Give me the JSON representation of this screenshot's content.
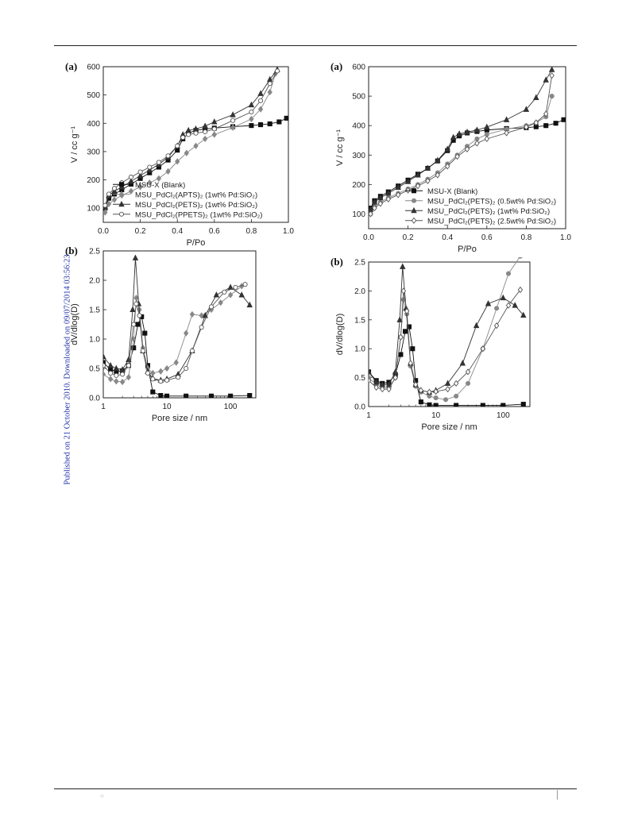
{
  "page": {
    "side_note": "Published on 21 October 2010. Downloaded on 09/07/2014 03:56:23."
  },
  "chart_data": [
    {
      "id": "left-a",
      "panel_label": "(a)",
      "type": "line",
      "xlabel": "P/Po",
      "ylabel": "V / cc g⁻¹",
      "xlim": [
        0,
        1.0
      ],
      "ylim": [
        50,
        600
      ],
      "x_scale": "linear",
      "xticks": [
        0.0,
        0.2,
        0.4,
        0.6,
        0.8,
        1.0
      ],
      "xtick_labels": [
        "0.0",
        "0.2",
        "0.4",
        "0.6",
        "0.8",
        "1.0"
      ],
      "yticks": [
        100,
        200,
        300,
        400,
        500,
        600
      ],
      "ytick_labels": [
        "100",
        "200",
        "300",
        "400",
        "500",
        "600"
      ],
      "legend_position": "bottom-left",
      "series": [
        {
          "name": "MSU-X (Blank)",
          "marker": "square-filled",
          "color": "#111111",
          "x": [
            0.01,
            0.03,
            0.06,
            0.1,
            0.15,
            0.2,
            0.25,
            0.3,
            0.35,
            0.4,
            0.43,
            0.46,
            0.5,
            0.55,
            0.6,
            0.7,
            0.8,
            0.85,
            0.9,
            0.95,
            0.99
          ],
          "y": [
            100,
            135,
            150,
            165,
            185,
            205,
            225,
            245,
            270,
            305,
            345,
            365,
            375,
            380,
            383,
            388,
            392,
            395,
            398,
            405,
            418
          ]
        },
        {
          "name": "MSU_PdCl₂(APTS)₂  (1wt% Pd:SiO₂)",
          "marker": "diamond-filled",
          "color": "#888888",
          "x": [
            0.01,
            0.03,
            0.06,
            0.1,
            0.15,
            0.2,
            0.25,
            0.3,
            0.35,
            0.4,
            0.45,
            0.5,
            0.55,
            0.6,
            0.7,
            0.8,
            0.85,
            0.9,
            0.93
          ],
          "y": [
            85,
            115,
            130,
            145,
            160,
            175,
            190,
            205,
            230,
            265,
            295,
            320,
            345,
            360,
            385,
            415,
            450,
            510,
            575
          ]
        },
        {
          "name": "MSU_PdCl₂(PETS)₂  (1wt% Pd:SiO₂)",
          "marker": "triangle-filled",
          "color": "#333333",
          "x": [
            0.01,
            0.03,
            0.06,
            0.1,
            0.15,
            0.2,
            0.25,
            0.3,
            0.35,
            0.4,
            0.43,
            0.46,
            0.5,
            0.55,
            0.6,
            0.7,
            0.8,
            0.85,
            0.9,
            0.94
          ],
          "y": [
            105,
            145,
            160,
            175,
            195,
            215,
            235,
            255,
            280,
            320,
            360,
            375,
            380,
            390,
            405,
            430,
            465,
            505,
            555,
            590
          ]
        },
        {
          "name": "MSU_PdCl₂(PPETS)₂  (1wt% Pd:SiO₂)",
          "marker": "circle-open",
          "color": "#555555",
          "x": [
            0.01,
            0.03,
            0.06,
            0.1,
            0.15,
            0.2,
            0.25,
            0.3,
            0.35,
            0.4,
            0.43,
            0.46,
            0.5,
            0.55,
            0.6,
            0.7,
            0.8,
            0.85,
            0.9,
            0.94
          ],
          "y": [
            110,
            150,
            170,
            190,
            210,
            228,
            245,
            262,
            285,
            320,
            350,
            360,
            365,
            370,
            380,
            410,
            440,
            480,
            540,
            585
          ]
        }
      ]
    },
    {
      "id": "right-a",
      "panel_label": "(a)",
      "type": "line",
      "xlabel": "P/Po",
      "ylabel": "V / cc g⁻¹",
      "xlim": [
        0,
        1.0
      ],
      "ylim": [
        50,
        600
      ],
      "x_scale": "linear",
      "xticks": [
        0.0,
        0.2,
        0.4,
        0.6,
        0.8,
        1.0
      ],
      "xtick_labels": [
        "0.0",
        "0.2",
        "0.4",
        "0.6",
        "0.8",
        "1.0"
      ],
      "yticks": [
        100,
        200,
        300,
        400,
        500,
        600
      ],
      "ytick_labels": [
        "100",
        "200",
        "300",
        "400",
        "500",
        "600"
      ],
      "legend_position": "bottom-right",
      "series": [
        {
          "name": "MSU-X (Blank)",
          "marker": "square-filled",
          "color": "#111111",
          "x": [
            0.01,
            0.03,
            0.06,
            0.1,
            0.15,
            0.2,
            0.25,
            0.3,
            0.35,
            0.4,
            0.43,
            0.46,
            0.5,
            0.55,
            0.6,
            0.7,
            0.8,
            0.85,
            0.9,
            0.95,
            0.99
          ],
          "y": [
            120,
            145,
            160,
            175,
            195,
            215,
            235,
            255,
            280,
            315,
            350,
            365,
            375,
            380,
            385,
            390,
            393,
            396,
            400,
            408,
            420
          ]
        },
        {
          "name": "MSU_PdCl₂(PETS)₂  (0.5wt% Pd:SiO₂)",
          "marker": "circle-filled",
          "color": "#888888",
          "x": [
            0.01,
            0.03,
            0.06,
            0.1,
            0.15,
            0.2,
            0.25,
            0.3,
            0.35,
            0.4,
            0.45,
            0.5,
            0.55,
            0.6,
            0.7,
            0.8,
            0.85,
            0.9,
            0.93
          ],
          "y": [
            100,
            125,
            140,
            155,
            170,
            185,
            200,
            218,
            240,
            270,
            300,
            330,
            355,
            370,
            388,
            400,
            410,
            430,
            500
          ]
        },
        {
          "name": "MSU_PdCl₂(PETS)₂  (1wt% Pd:SiO₂)",
          "marker": "triangle-filled",
          "color": "#333333",
          "x": [
            0.01,
            0.03,
            0.06,
            0.1,
            0.15,
            0.2,
            0.25,
            0.3,
            0.35,
            0.4,
            0.43,
            0.46,
            0.5,
            0.55,
            0.6,
            0.7,
            0.8,
            0.85,
            0.9,
            0.93
          ],
          "y": [
            115,
            140,
            155,
            170,
            190,
            210,
            232,
            255,
            282,
            320,
            360,
            372,
            378,
            385,
            395,
            420,
            455,
            495,
            555,
            590
          ]
        },
        {
          "name": "MSU_PdCl₂(PETS)₂  (2.5wt% Pd:SiO₂)",
          "marker": "diamond-open",
          "color": "#555555",
          "x": [
            0.01,
            0.03,
            0.06,
            0.1,
            0.15,
            0.2,
            0.25,
            0.3,
            0.35,
            0.4,
            0.45,
            0.5,
            0.55,
            0.6,
            0.7,
            0.8,
            0.85,
            0.9,
            0.93
          ],
          "y": [
            100,
            120,
            135,
            150,
            165,
            180,
            195,
            212,
            232,
            262,
            295,
            320,
            340,
            355,
            375,
            395,
            410,
            440,
            570
          ]
        }
      ]
    },
    {
      "id": "left-b",
      "panel_label": "(b)",
      "type": "line",
      "xlabel": "Pore size / nm",
      "ylabel": "dV/dlog(D)",
      "xlim": [
        1,
        250
      ],
      "ylim": [
        0,
        2.5
      ],
      "x_scale": "log",
      "xticks": [
        1,
        10,
        100
      ],
      "xtick_labels": [
        "1",
        "10",
        "100"
      ],
      "yticks": [
        0.0,
        0.5,
        1.0,
        1.5,
        2.0,
        2.5
      ],
      "ytick_labels": [
        "0.0",
        "0.5",
        "1.0",
        "1.5",
        "2.0",
        "2.5"
      ],
      "series": [
        {
          "name": "MSU-X (Blank)",
          "marker": "square-filled",
          "color": "#111111",
          "x": [
            1.0,
            1.3,
            1.6,
            2.0,
            2.5,
            3.0,
            3.5,
            4.0,
            4.5,
            5.0,
            6.0,
            8.0,
            10,
            20,
            50,
            100,
            200
          ],
          "y": [
            0.6,
            0.48,
            0.45,
            0.46,
            0.55,
            0.85,
            1.25,
            1.38,
            1.1,
            0.55,
            0.1,
            0.04,
            0.03,
            0.03,
            0.03,
            0.03,
            0.04
          ]
        },
        {
          "name": "MSU_PdCl₂(APTS)₂  (1wt% Pd:SiO₂)",
          "marker": "diamond-filled",
          "color": "#888888",
          "x": [
            1.0,
            1.3,
            1.6,
            2.0,
            2.5,
            3.0,
            3.3,
            3.7,
            4.2,
            5.0,
            6.0,
            8.0,
            10,
            14,
            20,
            25,
            35,
            50,
            70,
            100,
            150
          ],
          "y": [
            0.4,
            0.32,
            0.28,
            0.27,
            0.35,
            1.0,
            1.7,
            1.5,
            0.85,
            0.5,
            0.42,
            0.45,
            0.5,
            0.6,
            1.1,
            1.42,
            1.4,
            1.5,
            1.62,
            1.75,
            1.9
          ]
        },
        {
          "name": "MSU_PdCl₂(PETS)₂  (1wt% Pd:SiO₂)",
          "marker": "triangle-filled",
          "color": "#333333",
          "x": [
            1.0,
            1.3,
            1.6,
            2.0,
            2.5,
            2.9,
            3.2,
            3.6,
            4.2,
            5.0,
            6.0,
            8.0,
            10,
            15,
            25,
            40,
            60,
            100,
            150,
            200
          ],
          "y": [
            0.7,
            0.55,
            0.5,
            0.48,
            0.65,
            1.5,
            2.38,
            1.6,
            0.8,
            0.45,
            0.33,
            0.3,
            0.32,
            0.4,
            0.8,
            1.4,
            1.75,
            1.88,
            1.75,
            1.58
          ]
        },
        {
          "name": "MSU_PdCl₂(PPETS)₂  (1wt% Pd:SiO₂)",
          "marker": "circle-open",
          "color": "#555555",
          "x": [
            1.0,
            1.3,
            1.6,
            2.0,
            2.5,
            3.0,
            3.3,
            3.7,
            4.2,
            5.0,
            6.0,
            8.0,
            10,
            15,
            20,
            25,
            35,
            50,
            80,
            120,
            170
          ],
          "y": [
            0.55,
            0.42,
            0.38,
            0.4,
            0.55,
            1.25,
            1.6,
            1.4,
            0.8,
            0.42,
            0.32,
            0.28,
            0.3,
            0.35,
            0.5,
            0.8,
            1.2,
            1.55,
            1.8,
            1.88,
            1.93
          ]
        }
      ]
    },
    {
      "id": "right-b",
      "panel_label": "(b)",
      "type": "line",
      "xlabel": "Pore size / nm",
      "ylabel": "dV/dlog(D)",
      "xlim": [
        1,
        250
      ],
      "ylim": [
        0,
        2.5
      ],
      "x_scale": "log",
      "xticks": [
        1,
        10,
        100
      ],
      "xtick_labels": [
        "1",
        "10",
        "100"
      ],
      "yticks": [
        0.0,
        0.5,
        1.0,
        1.5,
        2.0,
        2.5
      ],
      "ytick_labels": [
        "0.0",
        "0.5",
        "1.0",
        "1.5",
        "2.0",
        "2.5"
      ],
      "series": [
        {
          "name": "MSU-X (Blank)",
          "marker": "square-filled",
          "color": "#111111",
          "x": [
            1.0,
            1.3,
            1.6,
            2.0,
            2.5,
            3.0,
            3.5,
            4.0,
            4.5,
            5.0,
            6.0,
            8.0,
            10,
            20,
            50,
            100,
            200
          ],
          "y": [
            0.6,
            0.45,
            0.4,
            0.42,
            0.55,
            0.9,
            1.3,
            1.38,
            1.0,
            0.45,
            0.08,
            0.03,
            0.02,
            0.02,
            0.02,
            0.02,
            0.04
          ]
        },
        {
          "name": "MSU_PdCl₂(PETS)₂  (0.5wt% Pd:SiO₂)",
          "marker": "circle-filled",
          "color": "#888888",
          "x": [
            1.0,
            1.3,
            1.6,
            2.0,
            2.5,
            3.0,
            3.3,
            3.7,
            4.2,
            5.0,
            6.0,
            8.0,
            10,
            14,
            20,
            30,
            50,
            80,
            120,
            180
          ],
          "y": [
            0.5,
            0.38,
            0.33,
            0.32,
            0.5,
            1.2,
            1.85,
            1.6,
            0.7,
            0.35,
            0.25,
            0.18,
            0.15,
            0.12,
            0.18,
            0.4,
            1.0,
            1.7,
            2.3,
            2.6
          ]
        },
        {
          "name": "MSU_PdCl₂(PETS)₂  (1wt% Pd:SiO₂)",
          "marker": "triangle-filled",
          "color": "#333333",
          "x": [
            1.0,
            1.3,
            1.6,
            2.0,
            2.5,
            2.9,
            3.2,
            3.6,
            4.2,
            5.0,
            6.0,
            8.0,
            10,
            15,
            25,
            40,
            60,
            100,
            150,
            200
          ],
          "y": [
            0.6,
            0.42,
            0.38,
            0.38,
            0.6,
            1.5,
            2.42,
            1.7,
            0.75,
            0.38,
            0.28,
            0.25,
            0.28,
            0.4,
            0.75,
            1.4,
            1.78,
            1.88,
            1.75,
            1.58
          ]
        },
        {
          "name": "MSU_PdCl₂(PETS)₂  (2.5wt% Pd:SiO₂)",
          "marker": "diamond-open",
          "color": "#555555",
          "x": [
            1.0,
            1.3,
            1.6,
            2.0,
            2.5,
            3.0,
            3.3,
            3.7,
            4.2,
            5.0,
            6.0,
            8.0,
            10,
            15,
            20,
            30,
            50,
            80,
            120,
            180
          ],
          "y": [
            0.45,
            0.33,
            0.3,
            0.3,
            0.5,
            1.2,
            2.0,
            1.65,
            0.75,
            0.38,
            0.28,
            0.25,
            0.26,
            0.3,
            0.4,
            0.6,
            1.0,
            1.4,
            1.75,
            2.02
          ]
        }
      ]
    }
  ]
}
